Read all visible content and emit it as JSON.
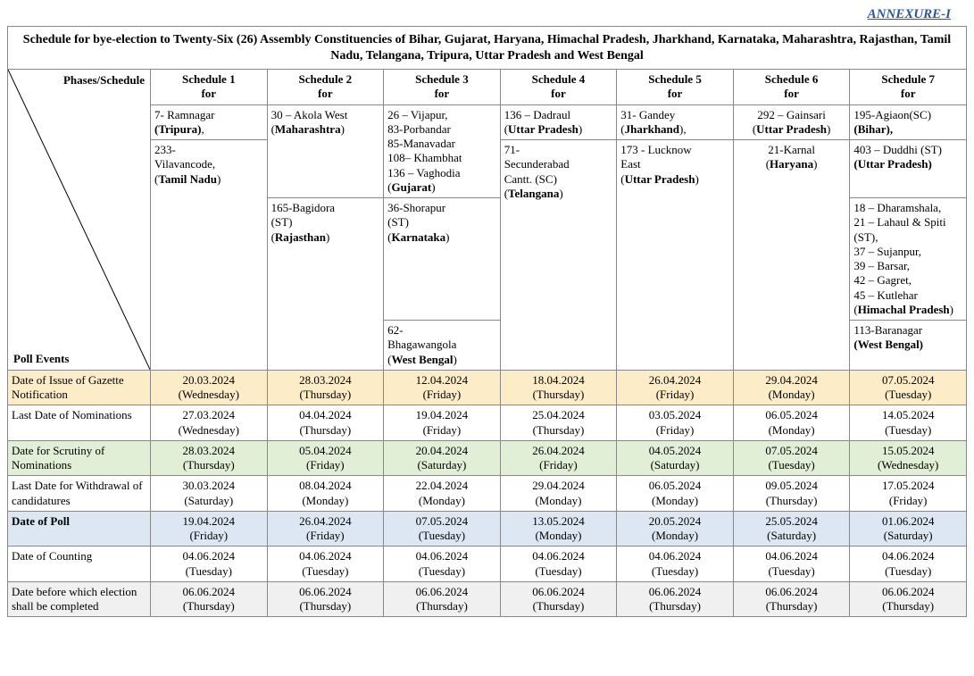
{
  "annexure": "ANNEXURE-I",
  "title": "Schedule for bye-election to Twenty-Six (26) Assembly Constituencies of Bihar, Gujarat, Haryana, Himachal Pradesh, Jharkhand, Karnataka, Maharashtra, Rajasthan, Tamil Nadu, Telangana, Tripura, Uttar Pradesh and West Bengal",
  "phasesLabel": "Phases/Schedule",
  "pollEventsLabel": "Poll Events",
  "schedules": [
    {
      "label": "Schedule 1",
      "for": "for"
    },
    {
      "label": "Schedule 2",
      "for": "for"
    },
    {
      "label": "Schedule 3",
      "for": "for"
    },
    {
      "label": "Schedule 4",
      "for": "for"
    },
    {
      "label": "Schedule 5",
      "for": "for"
    },
    {
      "label": "Schedule 6",
      "for": "for"
    },
    {
      "label": "Schedule 7",
      "for": "for"
    }
  ],
  "constit": {
    "s1a_line1": "7- Ramnagar",
    "s1a_state": "(Tripura)",
    "s1a_comma": ",",
    "s1b_line1": "233-",
    "s1b_line2": "Vilavancode,",
    "s1b_state": "(Tamil Nadu)",
    "s2a_line1": "30 – Akola West",
    "s2a_state": "(Maharashtra)",
    "s2b_line1": "165-Bagidora",
    "s2b_line2": "(ST)",
    "s2b_state": "(Rajasthan)",
    "s3a_line1": "26 – Vijapur,",
    "s3a_line2": "83-Porbandar",
    "s3a_line3": "85-Manavadar",
    "s3a_line4": "108– Khambhat",
    "s3a_line5": "136 – Vaghodia",
    "s3a_state": "(Gujarat)",
    "s3b_line1": "36-Shorapur",
    "s3b_line2": "(ST)",
    "s3b_state": "(Karnataka)",
    "s3c_line1": "62-",
    "s3c_line2": "Bhagawangola",
    "s3c_state": "(West Bengal)",
    "s4a_line1": "136 – Dadraul",
    "s4a_state": "(Uttar Pradesh)",
    "s4b_line1": "71-",
    "s4b_line2": "Secunderabad",
    "s4b_line3": "Cantt. (SC)",
    "s4b_state": "(Telangana)",
    "s5a_line1": "31- Gandey",
    "s5a_state": "(Jharkhand)",
    "s5a_comma": ",",
    "s5b_line1": "173 - Lucknow",
    "s5b_line2": "East",
    "s5b_state": "(Uttar Pradesh)",
    "s6a_line1": "292 – Gainsari",
    "s6a_state": "(Uttar Pradesh)",
    "s6b_line1": "21-Karnal",
    "s6b_state": "(Haryana)",
    "s7a_line1": "195-Agiaon(SC)",
    "s7a_state": "(Bihar),",
    "s7b_line1": "403 – Duddhi (ST)",
    "s7b_state": "(Uttar Pradesh)",
    "s7c_line1": "18 – Dharamshala,",
    "s7c_line2": "21 – Lahaul & Spiti (ST),",
    "s7c_line3": "37 – Sujanpur,",
    "s7c_line4": "39 – Barsar,",
    "s7c_line5": "42 – Gagret,",
    "s7c_line6": "45 – Kutlehar",
    "s7c_state": "(Himachal Pradesh)",
    "s7d_line1": "113-Baranagar",
    "s7d_state": "(West Bengal)"
  },
  "events": [
    {
      "name": "Date of Issue of Gazette Notification",
      "class": "row-gazette",
      "vals": [
        "20.03.2024\n(Wednesday)",
        "28.03.2024\n(Thursday)",
        "12.04.2024\n(Friday)",
        "18.04.2024\n(Thursday)",
        "26.04.2024\n(Friday)",
        "29.04.2024\n(Monday)",
        "07.05.2024\n(Tuesday)"
      ]
    },
    {
      "name": "Last Date of Nominations",
      "class": "",
      "vals": [
        "27.03.2024\n(Wednesday)",
        "04.04.2024\n(Thursday)",
        "19.04.2024\n(Friday)",
        "25.04.2024\n(Thursday)",
        "03.05.2024\n(Friday)",
        "06.05.2024\n(Monday)",
        "14.05.2024\n(Tuesday)"
      ]
    },
    {
      "name": "Date for Scrutiny of Nominations",
      "class": "row-scrutiny",
      "vals": [
        "28.03.2024\n(Thursday)",
        "05.04.2024\n(Friday)",
        "20.04.2024\n(Saturday)",
        "26.04.2024\n(Friday)",
        "04.05.2024\n(Saturday)",
        "07.05.2024\n(Tuesday)",
        "15.05.2024\n(Wednesday)"
      ]
    },
    {
      "name": "Last Date for Withdrawal of candidatures",
      "class": "",
      "vals": [
        "30.03.2024\n(Saturday)",
        "08.04.2024\n(Monday)",
        "22.04.2024\n(Monday)",
        "29.04.2024\n(Monday)",
        "06.05.2024\n(Monday)",
        "09.05.2024\n(Thursday)",
        "17.05.2024\n(Friday)"
      ]
    },
    {
      "name": "Date of Poll",
      "class": "row-poll",
      "vals": [
        "19.04.2024\n(Friday)",
        "26.04.2024\n(Friday)",
        "07.05.2024\n(Tuesday)",
        "13.05.2024\n(Monday)",
        "20.05.2024\n(Monday)",
        "25.05.2024\n(Saturday)",
        "01.06.2024\n(Saturday)"
      ]
    },
    {
      "name": "Date of Counting",
      "class": "",
      "vals": [
        "04.06.2024\n(Tuesday)",
        "04.06.2024\n(Tuesday)",
        "04.06.2024\n(Tuesday)",
        "04.06.2024\n(Tuesday)",
        "04.06.2024\n(Tuesday)",
        "04.06.2024\n(Tuesday)",
        "04.06.2024\n(Tuesday)"
      ]
    },
    {
      "name": "Date before which election shall be completed",
      "class": "row-completed",
      "vals": [
        "06.06.2024\n(Thursday)",
        "06.06.2024\n(Thursday)",
        "06.06.2024\n(Thursday)",
        "06.06.2024\n(Thursday)",
        "06.06.2024\n(Thursday)",
        "06.06.2024\n(Thursday)",
        "06.06.2024\n(Thursday)"
      ]
    }
  ],
  "colors": {
    "gazette": "#fdecc8",
    "scrutiny": "#e2efd7",
    "poll": "#dce7f3",
    "completed": "#f0f0f0",
    "border": "#888888",
    "annex": "#2a5599"
  }
}
